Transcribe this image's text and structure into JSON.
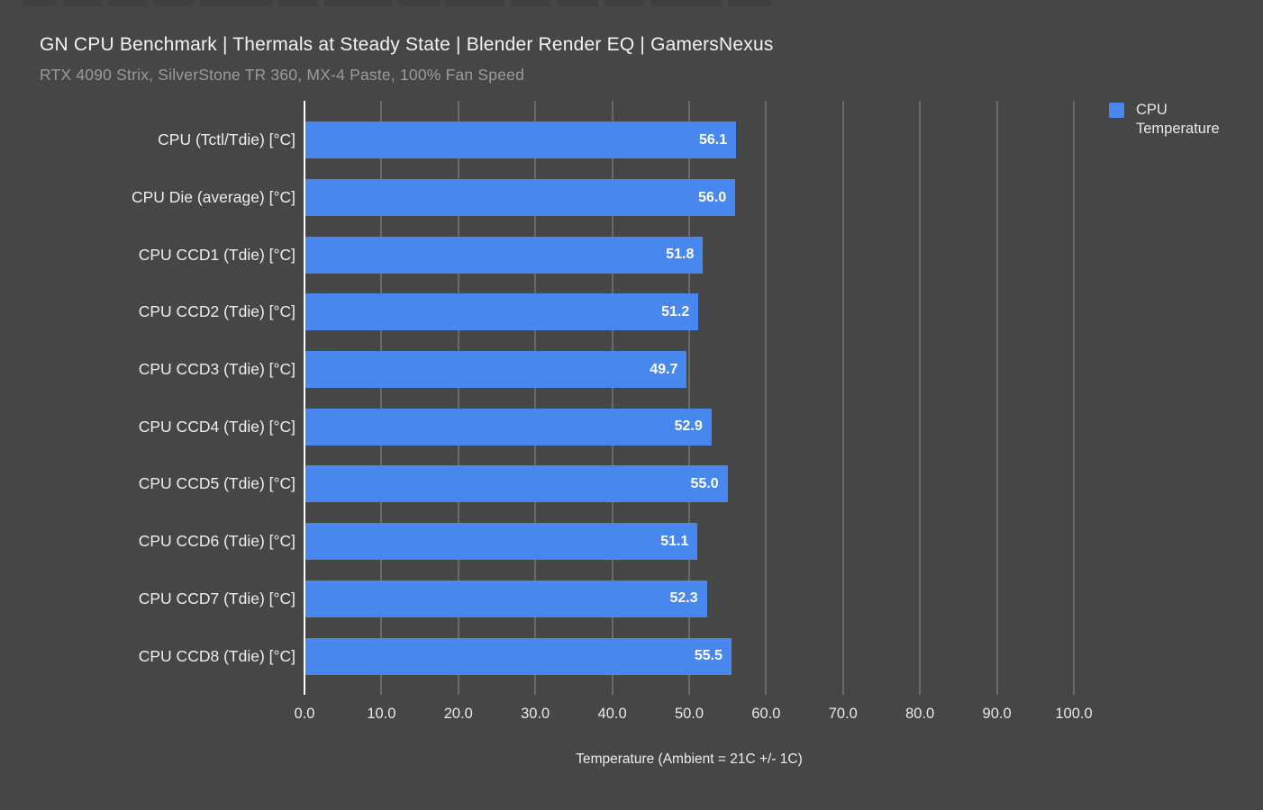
{
  "colors": {
    "background": "#464646",
    "bar": "#4787ee",
    "grid": "#8f8f8f",
    "axis": "#ffffff",
    "title_text": "#f2f2f2",
    "subtitle_text": "#9b9b9b"
  },
  "chart_data": {
    "type": "bar",
    "orientation": "horizontal",
    "title": "GN CPU Benchmark | Thermals at Steady State | Blender Render EQ | GamersNexus",
    "subtitle": "RTX 4090 Strix, SilverStone TR 360, MX-4 Paste, 100% Fan Speed",
    "categories": [
      "CPU (Tctl/Tdie) [°C]",
      "CPU Die (average) [°C]",
      "CPU CCD1 (Tdie) [°C]",
      "CPU CCD2 (Tdie) [°C]",
      "CPU CCD3 (Tdie) [°C]",
      "CPU CCD4 (Tdie) [°C]",
      "CPU CCD5 (Tdie) [°C]",
      "CPU CCD6 (Tdie) [°C]",
      "CPU CCD7 (Tdie) [°C]",
      "CPU CCD8 (Tdie) [°C]"
    ],
    "values": [
      56.1,
      56.0,
      51.8,
      51.2,
      49.7,
      52.9,
      55.0,
      51.1,
      52.3,
      55.5
    ],
    "value_labels": [
      "56.1",
      "56.0",
      "51.8",
      "51.2",
      "49.7",
      "52.9",
      "55.0",
      "51.1",
      "52.3",
      "55.5"
    ],
    "xlabel": "Temperature (Ambient = 21C +/- 1C)",
    "ylabel": "",
    "xlim": [
      0,
      100
    ],
    "xticks": [
      0,
      10,
      20,
      30,
      40,
      50,
      60,
      70,
      80,
      90,
      100
    ],
    "xtick_labels": [
      "0.0",
      "10.0",
      "20.0",
      "30.0",
      "40.0",
      "50.0",
      "60.0",
      "70.0",
      "80.0",
      "90.0",
      "100.0"
    ],
    "grid": true,
    "legend": [
      "CPU Temperature"
    ],
    "legend_position": "top-right",
    "series_color": "#4787ee"
  }
}
